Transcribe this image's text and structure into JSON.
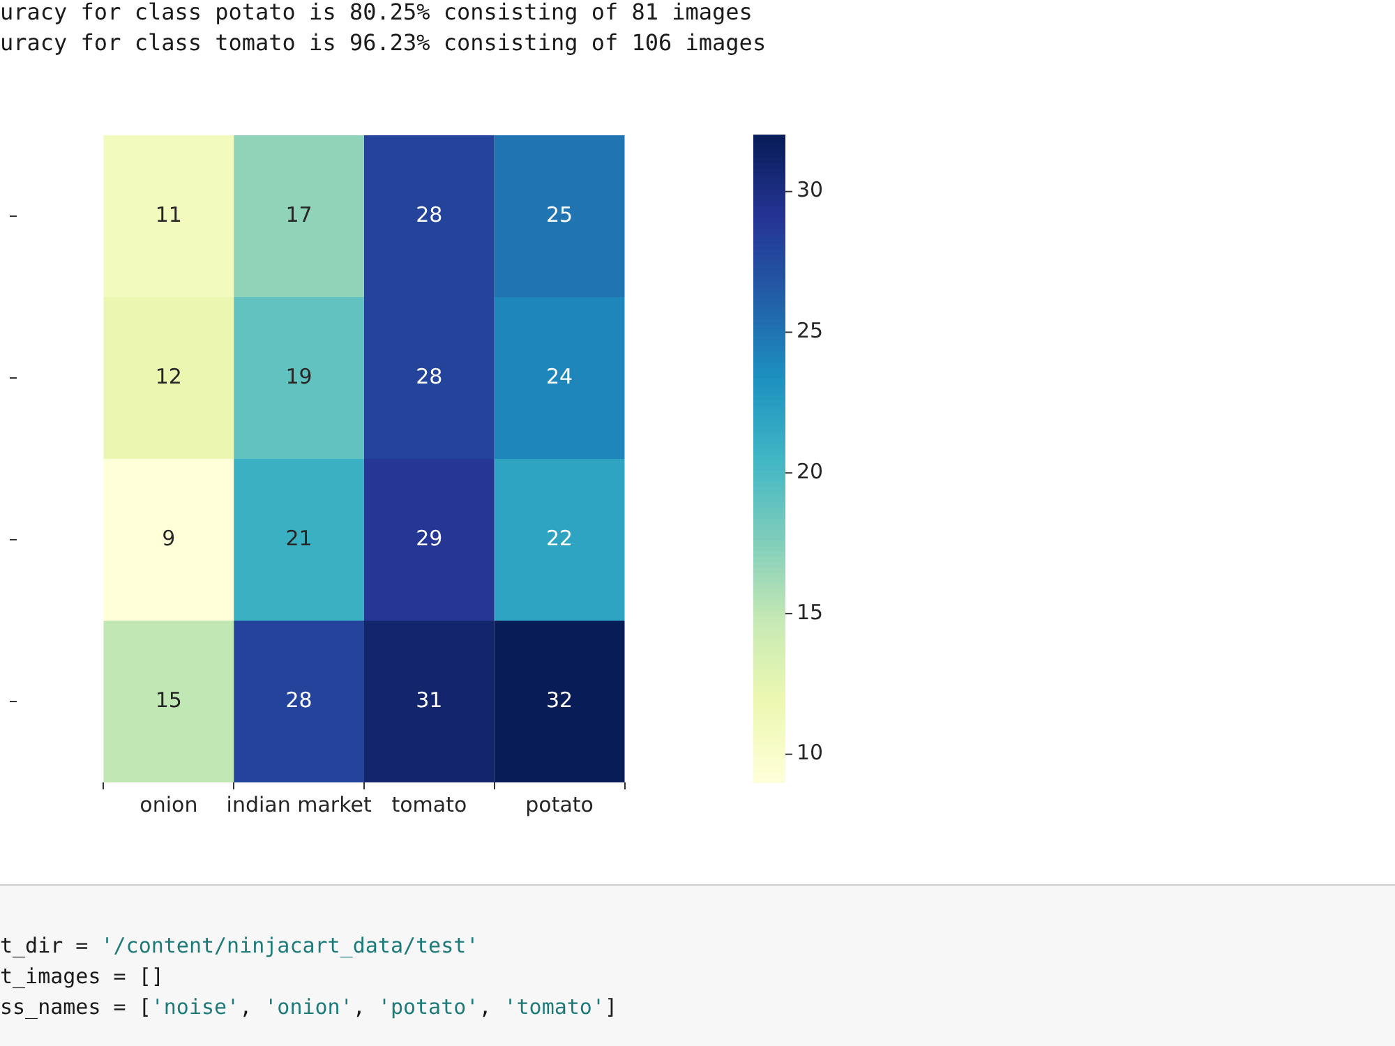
{
  "chart_data": {
    "type": "heatmap",
    "annotations": [
      "uracy for class potato is 80.25% consisting of 81 images",
      "uracy for class tomato is 96.23% consisting of 106 images",
      "t_dir = '/content/ninjacart_data/test'",
      "t_images = []",
      "ss_names = ['noise', 'onion', 'potato', 'tomato']"
    ],
    "categories": [
      "onion",
      "indian market",
      "tomato",
      "potato"
    ],
    "y_categories": [
      null,
      null,
      null,
      null
    ],
    "cells": [
      [
        11,
        17,
        28,
        25
      ],
      [
        12,
        19,
        28,
        24
      ],
      [
        9,
        21,
        29,
        22
      ],
      [
        15,
        28,
        31,
        32
      ]
    ],
    "clim": [
      9,
      32
    ],
    "cticks": [
      10,
      15,
      20,
      25,
      30
    ],
    "data_labels": true
  }
}
